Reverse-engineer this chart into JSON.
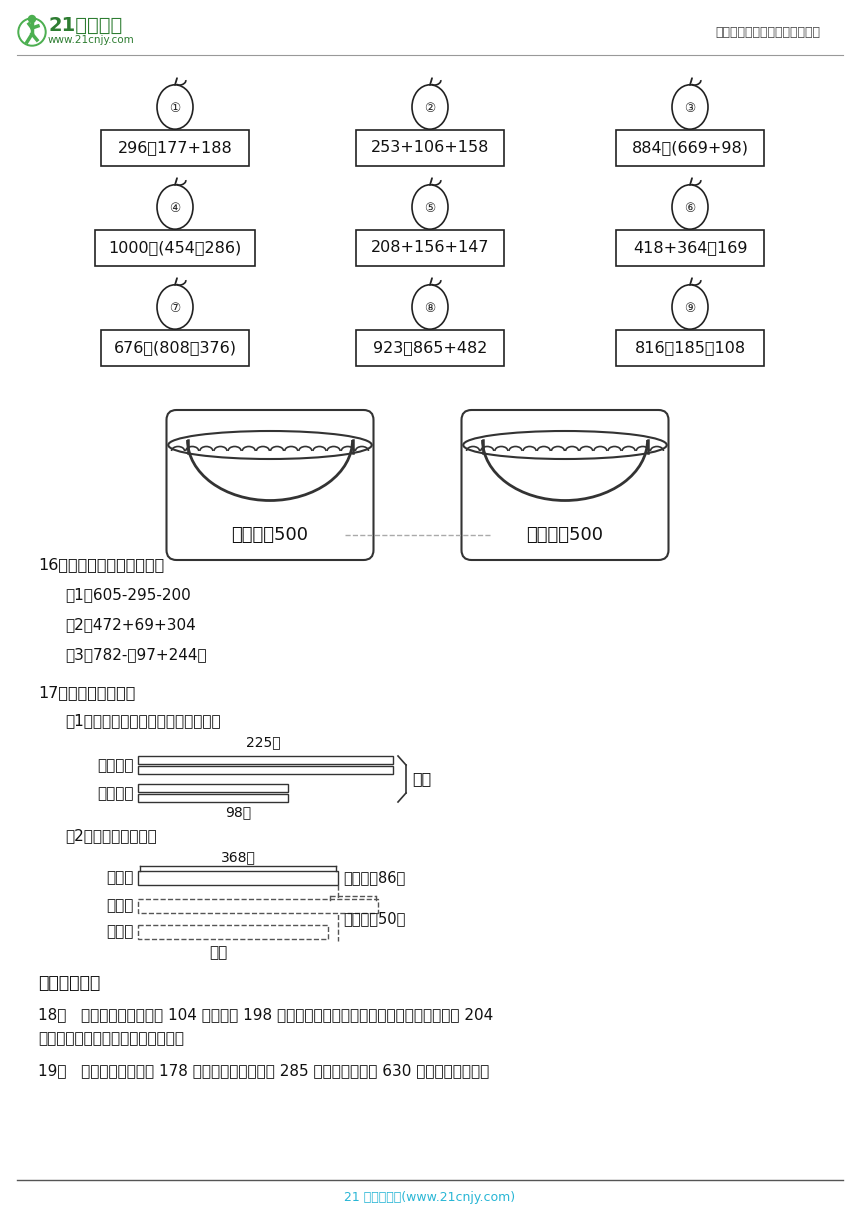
{
  "header_logo_text": "21世纪教育",
  "header_logo_sub": "www.21cnjy.com",
  "header_right": "中小学教育资源及组卷应用平台",
  "footer_text": "21 世纪教育网(www.21cnjy.com)",
  "bg_color": "#ffffff",
  "apple_expressions": [
    {
      "num": "①",
      "expr": "296－177+188"
    },
    {
      "num": "②",
      "expr": "253+106+158"
    },
    {
      "num": "③",
      "expr": "884－(669+98)"
    },
    {
      "num": "④",
      "expr": "1000－(454－286)"
    },
    {
      "num": "⑤",
      "expr": "208+156+147"
    },
    {
      "num": "⑥",
      "expr": "418+364－169"
    },
    {
      "num": "⑦",
      "expr": "676－(808－376)"
    },
    {
      "num": "⑧",
      "expr": "923－865+482"
    },
    {
      "num": "⑨",
      "expr": "816－185－108"
    }
  ],
  "basket_labels": [
    "得数大于500",
    "得数小于500"
  ],
  "section16_title": "16．用你喜欢的方式计算。",
  "section16_items": [
    "（1）605-295-200",
    "（2）472+69+304",
    "（3）782-（97+244）"
  ],
  "section17_title": "17．看图列式计算。",
  "section17_q1": "（1）故事书和科技书一共有多少本？",
  "section17_bar1_label": "故事书：",
  "section17_bar1_note": "225本",
  "section17_bar2_label": "科技书：",
  "section17_bar2_note": "98本",
  "section17_q2": "（2）枫树有多少棵？",
  "section17_bar3_label": "柳树：",
  "section17_bar3_note": "368棵",
  "section17_bar3_anno": "比柳树多86棵",
  "section17_bar4_label": "柏树：",
  "section17_bar5_label": "枫树：",
  "section17_bar5_anno": "比柏树少50棵",
  "section17_q2_ans": "？棵",
  "section4_title": "四、解决问题",
  "section18": "18．   某小学三年级有男生 104 人，女生 198 人。现进行核酸检测，已经完成核酸检测的有 204",
  "section18b": "人，还有多少人没有完成核酸检测？",
  "section19": "19．   粮店上午卖出面粉 178 千克，下午卖出面粉 285 千克，还剩面粉 630 千克，粮店原来有"
}
